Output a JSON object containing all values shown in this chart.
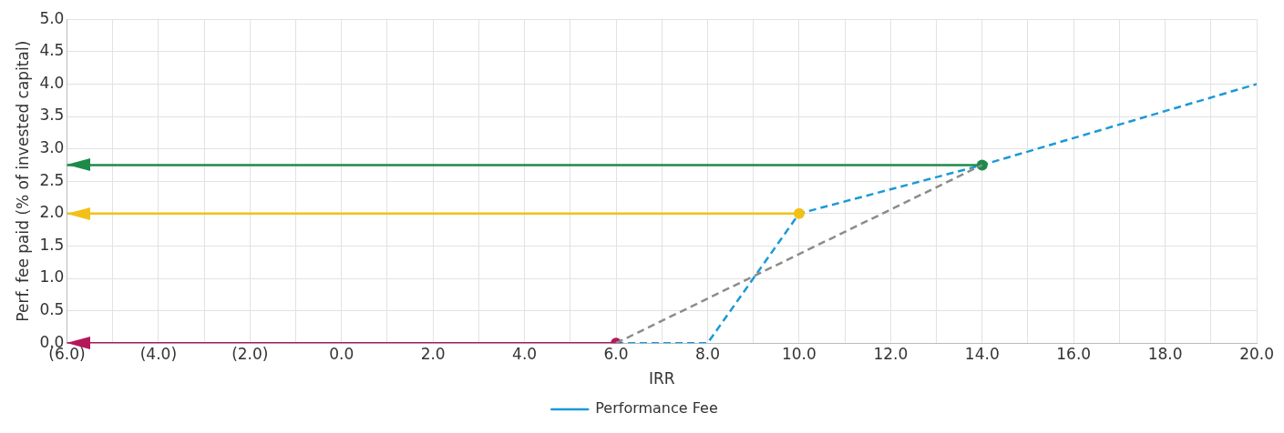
{
  "chart_data": {
    "type": "line",
    "xlabel": "IRR",
    "ylabel": "Perf. fee paid (% of invested capital)",
    "xlim": [
      -6,
      20
    ],
    "xticks": [
      {
        "value": -6,
        "label": "(6.0)"
      },
      {
        "value": -5,
        "label": null
      },
      {
        "value": -4,
        "label": "(4.0)"
      },
      {
        "value": -3,
        "label": null
      },
      {
        "value": -2,
        "label": "(2.0)"
      },
      {
        "value": -1,
        "label": null
      },
      {
        "value": 0,
        "label": "0.0"
      },
      {
        "value": 1,
        "label": null
      },
      {
        "value": 2,
        "label": "2.0"
      },
      {
        "value": 3,
        "label": null
      },
      {
        "value": 4,
        "label": "4.0"
      },
      {
        "value": 5,
        "label": null
      },
      {
        "value": 6,
        "label": "6.0"
      },
      {
        "value": 7,
        "label": null
      },
      {
        "value": 8,
        "label": "8.0"
      },
      {
        "value": 9,
        "label": null
      },
      {
        "value": 10,
        "label": "10.0"
      },
      {
        "value": 11,
        "label": null
      },
      {
        "value": 12,
        "label": "12.0"
      },
      {
        "value": 13,
        "label": null
      },
      {
        "value": 14,
        "label": "14.0"
      },
      {
        "value": 15,
        "label": null
      },
      {
        "value": 16,
        "label": "16.0"
      },
      {
        "value": 17,
        "label": null
      },
      {
        "value": 18,
        "label": "18.0"
      },
      {
        "value": 19,
        "label": null
      },
      {
        "value": 20,
        "label": "20.0"
      }
    ],
    "ylim": [
      0,
      5
    ],
    "yticks": [
      {
        "value": 0,
        "label": "0.0"
      },
      {
        "value": 0.5,
        "label": "0.5"
      },
      {
        "value": 1,
        "label": "1.0"
      },
      {
        "value": 1.5,
        "label": "1.5"
      },
      {
        "value": 2,
        "label": "2.0"
      },
      {
        "value": 2.5,
        "label": "2.5"
      },
      {
        "value": 3,
        "label": "3.0"
      },
      {
        "value": 3.5,
        "label": "3.5"
      },
      {
        "value": 4,
        "label": "4.0"
      },
      {
        "value": 4.5,
        "label": "4.5"
      },
      {
        "value": 5,
        "label": "5.0"
      }
    ],
    "grid": true,
    "legend": "bottom",
    "series": [
      {
        "name": "Performance Fee",
        "color": "#1a9ad6",
        "line_style": "dashed",
        "marker": "none",
        "x": [
          6,
          8,
          10,
          14,
          20
        ],
        "values": [
          0,
          0,
          2,
          2.75,
          4
        ]
      },
      {
        "color": "#8c8c8c",
        "line_style": "dashed",
        "marker": "none",
        "x": [
          6,
          14
        ],
        "values": [
          0,
          2.75
        ]
      },
      {
        "color": "#b5175a",
        "line_style": "solid",
        "marker": "circle",
        "x": [
          -6,
          6
        ],
        "values": [
          0,
          0
        ]
      },
      {
        "color": "#f2c118",
        "line_style": "solid",
        "marker": "circle",
        "x": [
          -6,
          10
        ],
        "values": [
          2,
          2
        ]
      },
      {
        "color": "#1e8a4a",
        "line_style": "solid",
        "marker": "circle",
        "x": [
          -6,
          14
        ],
        "values": [
          2.75,
          2.75
        ]
      }
    ]
  }
}
